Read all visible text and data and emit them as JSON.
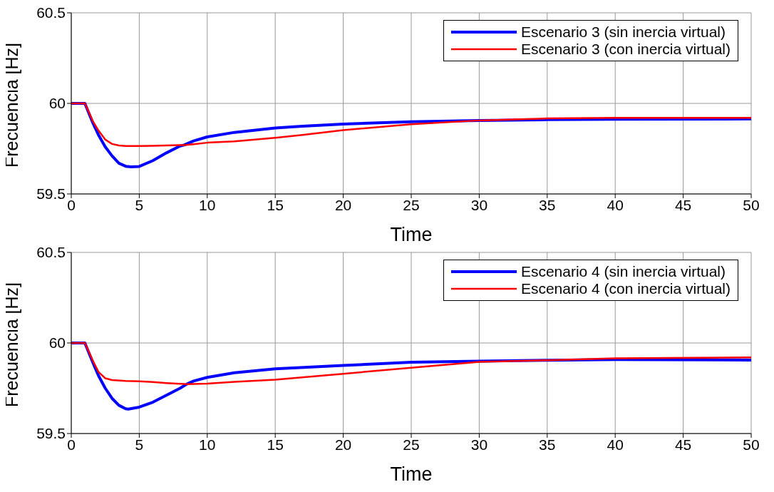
{
  "chart_data": [
    {
      "type": "line",
      "xlabel": "Time",
      "ylabel": "Frecuencia [Hz]",
      "xlim": [
        0,
        50
      ],
      "xticks": [
        0,
        5,
        10,
        15,
        20,
        25,
        30,
        35,
        40,
        45,
        50
      ],
      "ylim": [
        59.5,
        60.5
      ],
      "yticks": [
        59.5,
        60,
        60.5
      ],
      "grid": true,
      "legend": "top right",
      "series": [
        {
          "name": "Escenario 3 (sin inercia virtual)",
          "color": "#0000ff",
          "x": [
            0,
            1,
            1.6,
            2,
            2.5,
            3,
            3.5,
            4,
            4.4,
            5,
            6,
            7,
            8,
            8.3,
            9,
            10,
            12,
            15,
            17,
            20,
            25,
            30,
            35,
            40,
            50
          ],
          "values": [
            60,
            60,
            59.89,
            59.826,
            59.76,
            59.71,
            59.67,
            59.653,
            59.65,
            59.652,
            59.684,
            59.727,
            59.765,
            59.77,
            59.793,
            59.815,
            59.84,
            59.864,
            59.874,
            59.886,
            59.899,
            59.906,
            59.91,
            59.912,
            59.914
          ]
        },
        {
          "name": "Escenario 3 (con inercia virtual)",
          "color": "#ff0000",
          "x": [
            0,
            1,
            1.6,
            2,
            2.5,
            3,
            3.5,
            4,
            5,
            6,
            7,
            8,
            8.3,
            9,
            10,
            12,
            15,
            17,
            20,
            25,
            30,
            35,
            40,
            50
          ],
          "values": [
            60,
            60,
            59.9,
            59.85,
            59.8,
            59.776,
            59.768,
            59.765,
            59.765,
            59.766,
            59.768,
            59.77,
            59.77,
            59.775,
            59.783,
            59.79,
            59.81,
            59.826,
            59.852,
            59.885,
            59.906,
            59.917,
            59.92,
            59.92
          ]
        }
      ]
    },
    {
      "type": "line",
      "xlabel": "Time",
      "ylabel": "Frecuencia [Hz]",
      "xlim": [
        0,
        50
      ],
      "xticks": [
        0,
        5,
        10,
        15,
        20,
        25,
        30,
        35,
        40,
        45,
        50
      ],
      "ylim": [
        59.5,
        60.5
      ],
      "yticks": [
        59.5,
        60,
        60.5
      ],
      "grid": true,
      "legend": "top right",
      "series": [
        {
          "name": "Escenario 4 (sin inercia virtual)",
          "color": "#0000ff",
          "x": [
            0,
            1,
            1.6,
            2,
            2.5,
            3,
            3.5,
            4,
            4.2,
            5,
            6,
            7,
            8,
            8.5,
            9,
            10,
            12,
            15,
            20,
            25,
            30,
            35,
            40,
            50
          ],
          "values": [
            60,
            60,
            59.89,
            59.82,
            59.75,
            59.694,
            59.656,
            59.637,
            59.635,
            59.646,
            59.673,
            59.712,
            59.75,
            59.773,
            59.79,
            59.81,
            59.836,
            59.857,
            59.876,
            59.894,
            59.9,
            59.905,
            59.908,
            59.906
          ]
        },
        {
          "name": "Escenario 4 (con inercia virtual)",
          "color": "#ff0000",
          "x": [
            0,
            1,
            1.6,
            2,
            2.5,
            3,
            4,
            5,
            6,
            7,
            8,
            8.5,
            10,
            12,
            15,
            20,
            25,
            30,
            35,
            40,
            50
          ],
          "values": [
            60,
            60,
            59.9,
            59.84,
            59.805,
            59.795,
            59.79,
            59.788,
            59.784,
            59.779,
            59.775,
            59.773,
            59.776,
            59.785,
            59.797,
            59.83,
            59.863,
            59.896,
            59.905,
            59.915,
            59.92
          ]
        }
      ]
    }
  ]
}
